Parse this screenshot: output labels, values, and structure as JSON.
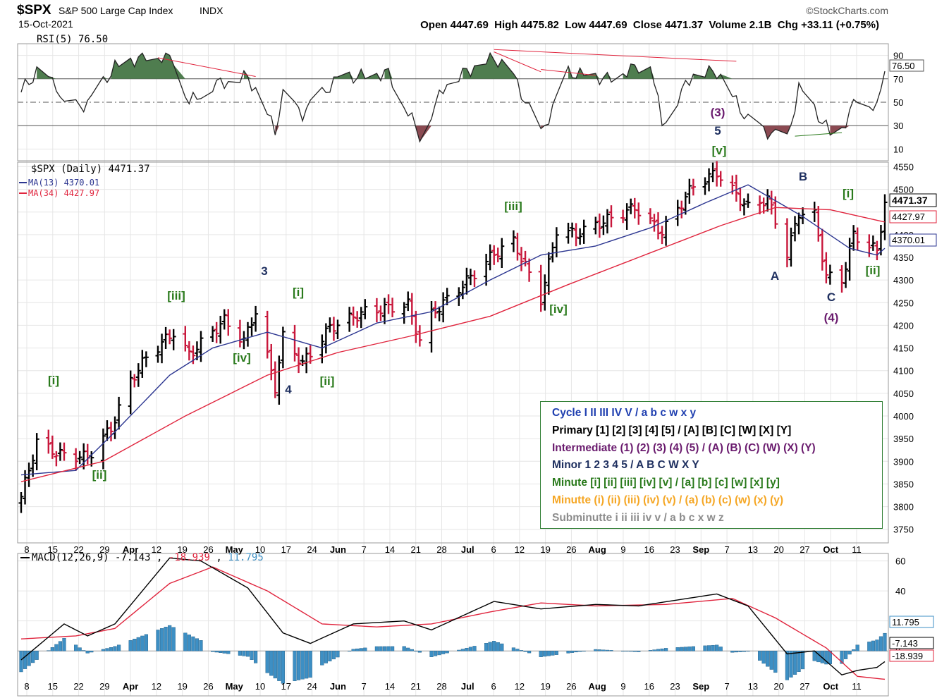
{
  "header": {
    "symbol": "$SPX",
    "name": "S&P 500 Large Cap Index",
    "exchange": "INDX",
    "date": "15-Oct-2021",
    "brand": "©StockCharts.com",
    "ohlc_text": "Open 4447.69  High 4475.82  Low 4447.69  Close 4471.37  Volume 2.1B  Chg +33.11 (+0.75%)"
  },
  "colors": {
    "up_bar": "#000000",
    "down_bar": "#c8173b",
    "ma13": "#2b3590",
    "ma34": "#e0243d",
    "rsi_fill": "#4f7d4f",
    "rsi_low_fill": "#8b4a52",
    "macd": "#000000",
    "signal": "#e0243d",
    "hist": "#3d8fc4",
    "minute": "#2a7a1c",
    "minor": "#1f3060",
    "intermediate": "#6a1b6e",
    "cycle": "#1f3fb0",
    "minutte": "#f5a623",
    "subminutte": "#8c8c8c"
  },
  "rsi_panel": {
    "label": "RSI(5) 76.50",
    "value_tag": "76.50",
    "ticks": [
      "90",
      "70",
      "50",
      "30",
      "10"
    ]
  },
  "price_panel": {
    "title": "$SPX (Daily) 4471.37",
    "ma13_label": "MA(13) 4370.01",
    "ma34_label": "MA(34) 4427.97",
    "close_tag": "4471.37",
    "ma34_tag": "4427.97",
    "ma13_tag": "4370.01",
    "ticks": [
      "4550",
      "4500",
      "4450",
      "4400",
      "4350",
      "4300",
      "4250",
      "4200",
      "4150",
      "4100",
      "4050",
      "4000",
      "3950",
      "3900",
      "3850",
      "3800",
      "3750"
    ]
  },
  "macd_panel": {
    "label_prefix": "MACD(12,26,9)",
    "macd_value": "-7.143",
    "signal_value": "-18.939",
    "hist_value": "11.795",
    "ticks": [
      "60",
      "40",
      "20",
      "0"
    ]
  },
  "x_axis": [
    "8",
    "15",
    "22",
    "29",
    "Apr",
    "12",
    "19",
    "26",
    "May",
    "10",
    "17",
    "24",
    "Jun",
    "7",
    "14",
    "21",
    "28",
    "Jul",
    "6",
    "12",
    "19",
    "26",
    "Aug",
    "9",
    "16",
    "23",
    "Sep",
    "7",
    "13",
    "20",
    "27",
    "Oct",
    "11"
  ],
  "wave_labels": [
    {
      "text": "[i]",
      "level": "minute"
    },
    {
      "text": "[ii]",
      "level": "minute"
    },
    {
      "text": "[iii]",
      "level": "minute"
    },
    {
      "text": "[iv]",
      "level": "minute"
    },
    {
      "text": "3",
      "level": "minor"
    },
    {
      "text": "[i]",
      "level": "minute"
    },
    {
      "text": "4",
      "level": "minor"
    },
    {
      "text": "[ii]",
      "level": "minute"
    },
    {
      "text": "[iii]",
      "level": "minute"
    },
    {
      "text": "[iv]",
      "level": "minute"
    },
    {
      "text": "(3)",
      "level": "intermediate"
    },
    {
      "text": "5",
      "level": "minor"
    },
    {
      "text": "[v]",
      "level": "minute"
    },
    {
      "text": "A",
      "level": "minor"
    },
    {
      "text": "B",
      "level": "minor"
    },
    {
      "text": "C",
      "level": "minor"
    },
    {
      "text": "(4)",
      "level": "intermediate"
    },
    {
      "text": "[i]",
      "level": "minute"
    },
    {
      "text": "[ii]",
      "level": "minute"
    }
  ],
  "legend": [
    {
      "text": "Cycle I II III IV V / a b c w x y",
      "level": "cycle"
    },
    {
      "text": "Primary [1] [2] [3] [4] [5] / [A] [B] [C] [W] [X] [Y]",
      "level": "primary"
    },
    {
      "text": "Intermediate (1) (2) (3) (4) (5) / (A) (B) (C) (W) (X) (Y)",
      "level": "intermediate"
    },
    {
      "text": "Minor 1 2 3 4 5 / A B C W X Y",
      "level": "minor"
    },
    {
      "text": "Minute [i] [ii] [iii] [iv] [v] / [a] [b] [c] [w] [x] [y]",
      "level": "minute"
    },
    {
      "text": "Minutte (i) (ii) (iii) (iv) (v) / (a) (b) (c) (w) (x) (y)",
      "level": "minutte"
    },
    {
      "text": "Subminutte i ii iii iv v / a b c x w z",
      "level": "subminutte"
    }
  ],
  "chart_data": {
    "type": "line",
    "title": "$SPX S&P 500 Large Cap Index INDX",
    "date_range": [
      "2021-03-08",
      "2021-10-15"
    ],
    "price_ylim": [
      3720,
      4560
    ],
    "rsi_ylim": [
      0,
      100
    ],
    "macd_ylim": [
      -30,
      65
    ],
    "grid": true,
    "series": [
      {
        "name": "$SPX (Daily)",
        "anchors": [
          [
            "2021-03-08",
            3822
          ],
          [
            "2021-03-12",
            3943
          ],
          [
            "2021-03-18",
            3915
          ],
          [
            "2021-03-25",
            3909
          ],
          [
            "2021-03-31",
            3973
          ],
          [
            "2021-04-05",
            4078
          ],
          [
            "2021-04-09",
            4129
          ],
          [
            "2021-04-16",
            4185
          ],
          [
            "2021-04-20",
            4135
          ],
          [
            "2021-04-29",
            4211
          ],
          [
            "2021-05-04",
            4165
          ],
          [
            "2021-05-07",
            4232
          ],
          [
            "2021-05-12",
            4063
          ],
          [
            "2021-05-14",
            4174
          ],
          [
            "2021-05-19",
            4116
          ],
          [
            "2021-05-26",
            4195
          ],
          [
            "2021-06-04",
            4230
          ],
          [
            "2021-06-15",
            4246
          ],
          [
            "2021-06-18",
            4166
          ],
          [
            "2021-06-21",
            4224
          ],
          [
            "2021-06-30",
            4298
          ],
          [
            "2021-07-07",
            4358
          ],
          [
            "2021-07-12",
            4385
          ],
          [
            "2021-07-19",
            4258
          ],
          [
            "2021-07-23",
            4411
          ],
          [
            "2021-07-28",
            4401
          ],
          [
            "2021-08-06",
            4437
          ],
          [
            "2021-08-12",
            4460
          ],
          [
            "2021-08-19",
            4405
          ],
          [
            "2021-08-27",
            4509
          ],
          [
            "2021-09-02",
            4537
          ],
          [
            "2021-09-10",
            4459
          ],
          [
            "2021-09-15",
            4480
          ],
          [
            "2021-09-20",
            4358
          ],
          [
            "2021-09-23",
            4449
          ],
          [
            "2021-09-27",
            4443
          ],
          [
            "2021-09-30",
            4308
          ],
          [
            "2021-10-04",
            4300
          ],
          [
            "2021-10-07",
            4400
          ],
          [
            "2021-10-13",
            4364
          ],
          [
            "2021-10-15",
            4471.37
          ]
        ]
      },
      {
        "name": "MA(13)",
        "anchors": [
          [
            "2021-03-08",
            3870
          ],
          [
            "2021-03-22",
            3880
          ],
          [
            "2021-04-01",
            3965
          ],
          [
            "2021-04-15",
            4090
          ],
          [
            "2021-04-26",
            4150
          ],
          [
            "2021-05-10",
            4185
          ],
          [
            "2021-05-24",
            4150
          ],
          [
            "2021-06-07",
            4205
          ],
          [
            "2021-06-21",
            4230
          ],
          [
            "2021-07-06",
            4300
          ],
          [
            "2021-07-19",
            4355
          ],
          [
            "2021-08-02",
            4375
          ],
          [
            "2021-08-16",
            4415
          ],
          [
            "2021-08-30",
            4470
          ],
          [
            "2021-09-10",
            4510
          ],
          [
            "2021-09-24",
            4440
          ],
          [
            "2021-10-06",
            4370
          ],
          [
            "2021-10-13",
            4355
          ],
          [
            "2021-10-15",
            4370.01
          ]
        ]
      },
      {
        "name": "MA(34)",
        "anchors": [
          [
            "2021-03-08",
            3855
          ],
          [
            "2021-03-29",
            3900
          ],
          [
            "2021-04-19",
            4000
          ],
          [
            "2021-05-10",
            4090
          ],
          [
            "2021-05-28",
            4140
          ],
          [
            "2021-06-15",
            4175
          ],
          [
            "2021-07-06",
            4220
          ],
          [
            "2021-07-26",
            4290
          ],
          [
            "2021-08-16",
            4360
          ],
          [
            "2021-09-03",
            4420
          ],
          [
            "2021-09-17",
            4460
          ],
          [
            "2021-10-01",
            4455
          ],
          [
            "2021-10-15",
            4427.97
          ]
        ]
      },
      {
        "name": "RSI(5)",
        "anchors": [
          [
            "2021-03-08",
            60
          ],
          [
            "2021-03-12",
            75
          ],
          [
            "2021-03-17",
            65
          ],
          [
            "2021-03-19",
            45
          ],
          [
            "2021-03-25",
            48
          ],
          [
            "2021-04-01",
            80
          ],
          [
            "2021-04-09",
            90
          ],
          [
            "2021-04-16",
            88
          ],
          [
            "2021-04-20",
            50
          ],
          [
            "2021-04-26",
            65
          ],
          [
            "2021-05-05",
            72
          ],
          [
            "2021-05-12",
            26
          ],
          [
            "2021-05-14",
            55
          ],
          [
            "2021-05-19",
            40
          ],
          [
            "2021-05-28",
            70
          ],
          [
            "2021-06-10",
            75
          ],
          [
            "2021-06-18",
            22
          ],
          [
            "2021-06-25",
            68
          ],
          [
            "2021-07-07",
            88
          ],
          [
            "2021-07-12",
            72
          ],
          [
            "2021-07-19",
            22
          ],
          [
            "2021-07-26",
            75
          ],
          [
            "2021-08-05",
            70
          ],
          [
            "2021-08-16",
            85
          ],
          [
            "2021-08-19",
            32
          ],
          [
            "2021-08-27",
            75
          ],
          [
            "2021-09-02",
            76
          ],
          [
            "2021-09-10",
            34
          ],
          [
            "2021-09-14",
            26
          ],
          [
            "2021-09-20",
            17
          ],
          [
            "2021-09-23",
            62
          ],
          [
            "2021-10-01",
            24
          ],
          [
            "2021-10-04",
            27
          ],
          [
            "2021-10-08",
            55
          ],
          [
            "2021-10-13",
            45
          ],
          [
            "2021-10-15",
            76.5
          ]
        ]
      },
      {
        "name": "MACD(12,26,9)",
        "anchors": [
          [
            "2021-03-08",
            -6
          ],
          [
            "2021-03-19",
            18
          ],
          [
            "2021-03-25",
            10
          ],
          [
            "2021-04-01",
            18
          ],
          [
            "2021-04-15",
            62
          ],
          [
            "2021-04-23",
            60
          ],
          [
            "2021-05-05",
            42
          ],
          [
            "2021-05-14",
            12
          ],
          [
            "2021-05-21",
            5
          ],
          [
            "2021-06-01",
            18
          ],
          [
            "2021-06-14",
            20
          ],
          [
            "2021-06-21",
            14
          ],
          [
            "2021-07-07",
            33
          ],
          [
            "2021-07-19",
            28
          ],
          [
            "2021-08-02",
            31
          ],
          [
            "2021-08-13",
            30
          ],
          [
            "2021-09-02",
            38
          ],
          [
            "2021-09-10",
            30
          ],
          [
            "2021-09-20",
            -2
          ],
          [
            "2021-09-27",
            0
          ],
          [
            "2021-10-04",
            -16
          ],
          [
            "2021-10-08",
            -13
          ],
          [
            "2021-10-13",
            -11
          ],
          [
            "2021-10-15",
            -7.143
          ]
        ]
      },
      {
        "name": "Signal",
        "anchors": [
          [
            "2021-03-08",
            8
          ],
          [
            "2021-03-22",
            10
          ],
          [
            "2021-04-01",
            15
          ],
          [
            "2021-04-15",
            45
          ],
          [
            "2021-04-26",
            56
          ],
          [
            "2021-05-10",
            40
          ],
          [
            "2021-05-24",
            18
          ],
          [
            "2021-06-07",
            16
          ],
          [
            "2021-06-21",
            18
          ],
          [
            "2021-07-06",
            26
          ],
          [
            "2021-07-19",
            32
          ],
          [
            "2021-08-02",
            30
          ],
          [
            "2021-08-20",
            31
          ],
          [
            "2021-09-06",
            35
          ],
          [
            "2021-09-17",
            22
          ],
          [
            "2021-09-30",
            2
          ],
          [
            "2021-10-08",
            -17
          ],
          [
            "2021-10-15",
            -18.939
          ]
        ]
      }
    ]
  }
}
